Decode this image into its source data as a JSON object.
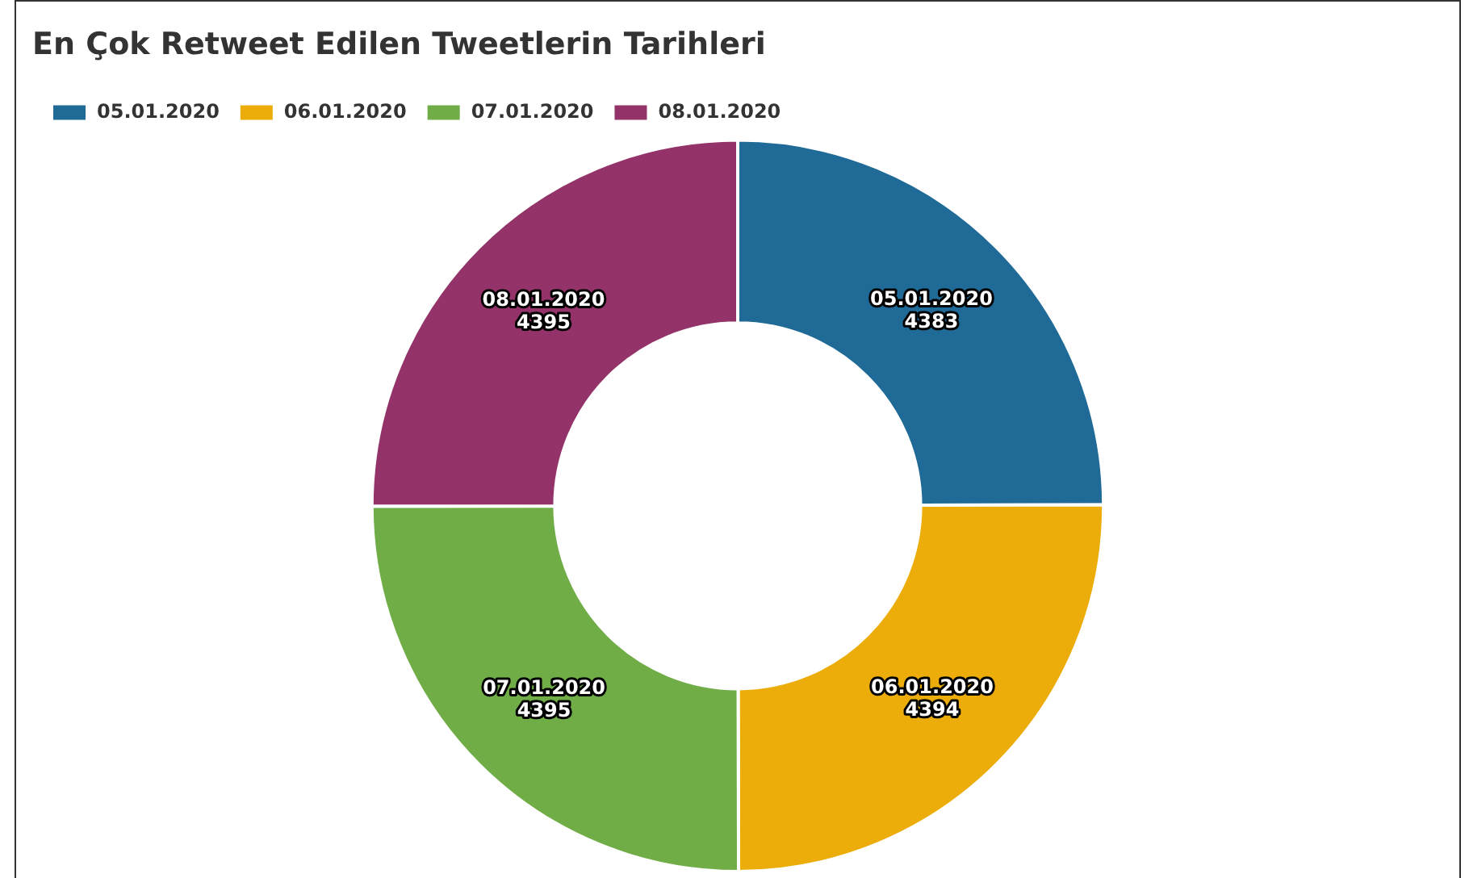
{
  "chart_data": {
    "type": "donut",
    "title": "En Çok Retweet Edilen Tweetlerin Tarihleri",
    "categories": [
      "05.01.2020",
      "06.01.2020",
      "07.01.2020",
      "08.01.2020"
    ],
    "values": [
      4383,
      4394,
      4395,
      4395
    ],
    "colors": [
      "#1f6a96",
      "#ecad0a",
      "#70ad47",
      "#933369"
    ],
    "legend": "top left",
    "data_labels": true
  }
}
